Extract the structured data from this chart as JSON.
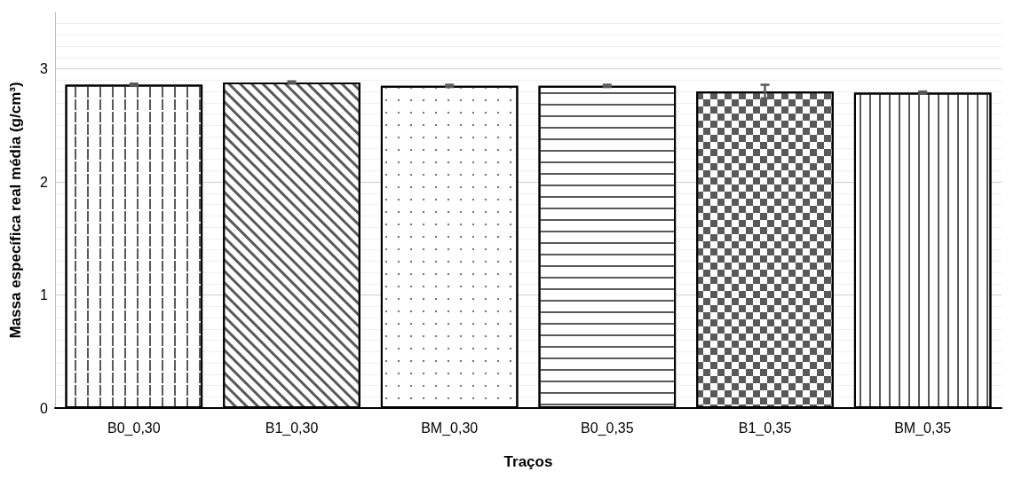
{
  "chart_data": {
    "type": "bar",
    "xlabel": "Traços",
    "ylabel": "Massa específica real média (g/cm³)",
    "categories": [
      "B0_0,30",
      "B1_0,30",
      "BM_0,30",
      "B0_0,35",
      "B1_0,35",
      "BM_0,35"
    ],
    "values": [
      2.86,
      2.88,
      2.85,
      2.85,
      2.8,
      2.79
    ],
    "errors": [
      0.01,
      0.01,
      0.01,
      0.01,
      0.06,
      0.01
    ],
    "colors": [
      "#ffffff",
      "#ffffff",
      "#ffffff",
      "#ffffff",
      "#ffffff",
      "#ffffff"
    ],
    "ylim": [
      0,
      3.5
    ],
    "yticks": [
      0,
      1,
      2,
      3
    ],
    "grid": "y"
  }
}
